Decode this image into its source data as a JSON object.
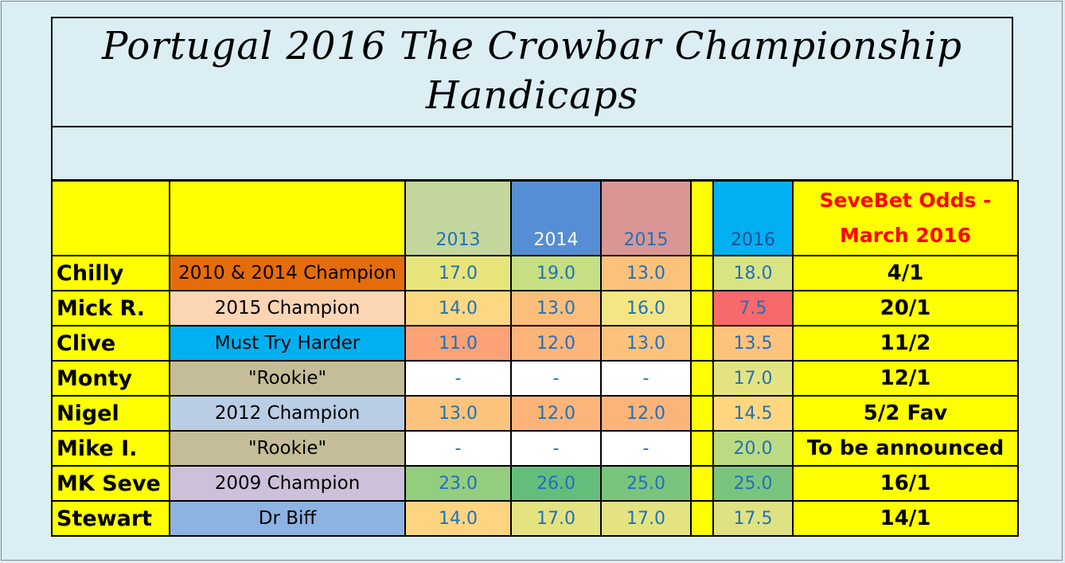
{
  "title": {
    "line1": "Portugal 2016 The Crowbar Championship",
    "line2": "Handicaps"
  },
  "header": {
    "years": [
      "2013",
      "2014",
      "2015"
    ],
    "year_2016": "2016",
    "odds_line1": "SeveBet Odds -",
    "odds_line2": "March 2016"
  },
  "colors": {
    "yellow": "#ffff00",
    "h2013": "#c3d69b",
    "h2014": "#558ed5",
    "h2015": "#d99694",
    "h2016": "#00b0f0"
  },
  "rows": [
    {
      "name": "Chilly",
      "title": "2010 & 2014 Champion",
      "title_bg": "#e46c0a",
      "y2013": "17.0",
      "y2014": "19.0",
      "y2015": "13.0",
      "y2016": "18.0",
      "odds": "4/1",
      "bg": [
        "#e8e47c",
        "#c5df82",
        "#fcc27c",
        "#d8e383"
      ]
    },
    {
      "name": "Mick R.",
      "title": "2015 Champion",
      "title_bg": "#fcd5b5",
      "y2013": "14.0",
      "y2014": "13.0",
      "y2015": "16.0",
      "y2016": "7.5",
      "odds": "20/1",
      "bg": [
        "#fdd882",
        "#fcbf7b",
        "#f4e683",
        "#f8696b"
      ]
    },
    {
      "name": "Clive",
      "title": "Must Try Harder",
      "title_bg": "#00b0f0",
      "y2013": "11.0",
      "y2014": "12.0",
      "y2015": "13.0",
      "y2016": "13.5",
      "odds": "11/2",
      "bg": [
        "#fba276",
        "#fcb479",
        "#fcc27c",
        "#fcc37c"
      ]
    },
    {
      "name": "Monty",
      "title": "\"Rookie\"",
      "title_bg": "#c4bd97",
      "y2013": "-",
      "y2014": "-",
      "y2015": "-",
      "y2016": "17.0",
      "odds": "12/1",
      "bg": [
        "#ffffff",
        "#ffffff",
        "#ffffff",
        "#e3e382"
      ]
    },
    {
      "name": "Nigel",
      "title": "2012 Champion",
      "title_bg": "#b9cde5",
      "y2013": "13.0",
      "y2014": "12.0",
      "y2015": "12.0",
      "y2016": "14.5",
      "odds": "5/2 Fav",
      "bg": [
        "#fcc37d",
        "#fcb479",
        "#fcb479",
        "#fed680"
      ]
    },
    {
      "name": "Mike I.",
      "title": "\"Rookie\"",
      "title_bg": "#c4bd97",
      "y2013": "-",
      "y2014": "-",
      "y2015": "-",
      "y2016": "20.0",
      "odds": "To be announced",
      "bg": [
        "#ffffff",
        "#ffffff",
        "#ffffff",
        "#bcda81"
      ]
    },
    {
      "name": "MK Seve",
      "title": "2009 Champion",
      "title_bg": "#ccc0da",
      "y2013": "23.0",
      "y2014": "26.0",
      "y2015": "25.0",
      "y2016": "25.0",
      "odds": "16/1",
      "bg": [
        "#93cd7e",
        "#63be7b",
        "#7ac57d",
        "#7ac57d"
      ]
    },
    {
      "name": "Stewart",
      "title": "Dr Biff",
      "title_bg": "#8db3e2",
      "y2013": "14.0",
      "y2014": "17.0",
      "y2015": "17.0",
      "y2016": "17.5",
      "odds": "14/1",
      "bg": [
        "#fdd580",
        "#e3e382",
        "#e3e382",
        "#dfe283"
      ]
    }
  ]
}
